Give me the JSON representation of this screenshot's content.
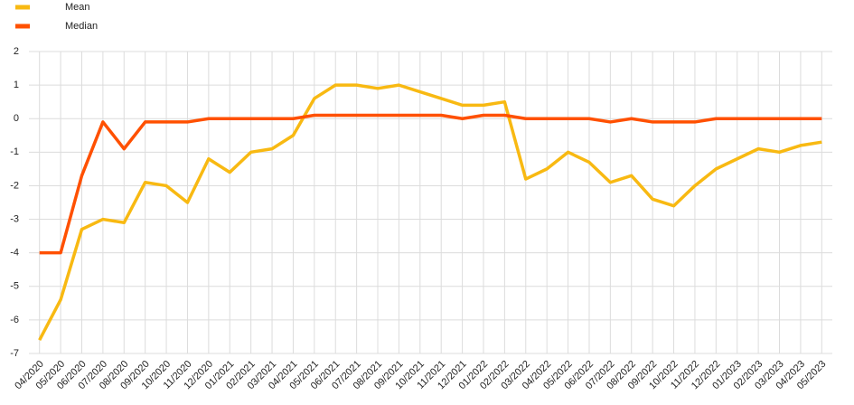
{
  "chart_data": {
    "type": "line",
    "categories": [
      "04/2020",
      "05/2020",
      "06/2020",
      "07/2020",
      "08/2020",
      "09/2020",
      "10/2020",
      "11/2020",
      "12/2020",
      "01/2021",
      "02/2021",
      "03/2021",
      "04/2021",
      "05/2021",
      "06/2021",
      "07/2021",
      "08/2021",
      "09/2021",
      "10/2021",
      "11/2021",
      "12/2021",
      "01/2022",
      "02/2022",
      "03/2022",
      "04/2022",
      "05/2022",
      "06/2022",
      "07/2022",
      "08/2022",
      "09/2022",
      "10/2022",
      "11/2022",
      "12/2022",
      "01/2023",
      "02/2023",
      "03/2023",
      "04/2023",
      "05/2023"
    ],
    "series": [
      {
        "name": "Mean",
        "color": "#f8b912",
        "values": [
          -6.6,
          -5.4,
          -3.3,
          -3.0,
          -3.1,
          -1.9,
          -2.0,
          -2.5,
          -1.2,
          -1.6,
          -1.0,
          -0.9,
          -0.5,
          0.6,
          1.0,
          1.0,
          0.9,
          1.0,
          0.8,
          0.6,
          0.4,
          0.4,
          0.5,
          -1.8,
          -1.5,
          -1.0,
          -1.3,
          -1.9,
          -1.7,
          -2.4,
          -2.6,
          -2.0,
          -1.5,
          -1.2,
          -0.9,
          -1.0,
          -0.8,
          -0.7
        ]
      },
      {
        "name": "Median",
        "color": "#ff5000",
        "values": [
          -4,
          -4,
          -1.7,
          -0.1,
          -0.9,
          -0.1,
          -0.1,
          -0.1,
          0,
          0,
          0,
          0,
          0,
          0.1,
          0.1,
          0.1,
          0.1,
          0.1,
          0.1,
          0.1,
          0,
          0.1,
          0.1,
          0,
          0,
          0,
          0,
          -0.1,
          0,
          -0.1,
          -0.1,
          -0.1,
          0,
          0,
          0,
          0,
          0,
          0
        ]
      }
    ],
    "ylim": [
      -7,
      2
    ],
    "yticks": [
      -7,
      -6,
      -5,
      -4,
      -3,
      -2,
      -1,
      0,
      1,
      2
    ],
    "grid": true
  }
}
